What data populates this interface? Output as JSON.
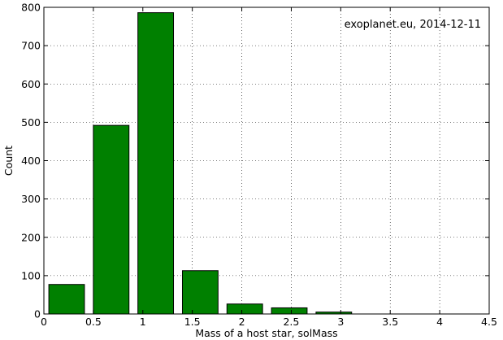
{
  "chart_data": {
    "type": "bar",
    "annotation": "exoplanet.eu, 2014-12-11",
    "xlabel": "Mass of a host star, solMass",
    "ylabel": "Count",
    "xlim": [
      0,
      4.5
    ],
    "ylim": [
      0,
      800
    ],
    "xticks": [
      "0",
      "0.5",
      "1",
      "1.5",
      "2",
      "2.5",
      "3",
      "3.5",
      "4",
      "4.5"
    ],
    "yticks": [
      "0",
      "100",
      "200",
      "300",
      "400",
      "500",
      "600",
      "700",
      "800"
    ],
    "grid": true,
    "bar_color": "#008000",
    "bars": [
      {
        "x0": 0.05,
        "x1": 0.41,
        "value": 77
      },
      {
        "x0": 0.5,
        "x1": 0.86,
        "value": 492
      },
      {
        "x0": 0.95,
        "x1": 1.31,
        "value": 786
      },
      {
        "x0": 1.4,
        "x1": 1.76,
        "value": 113
      },
      {
        "x0": 1.85,
        "x1": 2.21,
        "value": 26
      },
      {
        "x0": 2.3,
        "x1": 2.66,
        "value": 16
      },
      {
        "x0": 2.75,
        "x1": 3.11,
        "value": 5
      }
    ]
  }
}
